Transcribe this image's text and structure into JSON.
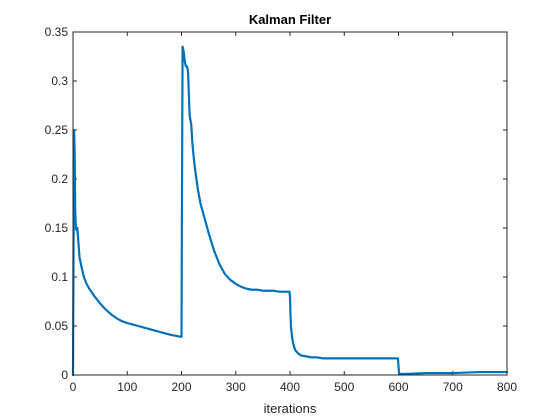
{
  "chart_data": {
    "type": "line",
    "title": "Kalman Filter",
    "xlabel": "iterations",
    "ylabel": "",
    "xlim": [
      0,
      800
    ],
    "ylim": [
      0,
      0.35
    ],
    "grid": false,
    "legend": "none",
    "xticks": [
      0,
      100,
      200,
      300,
      400,
      500,
      600,
      700,
      800
    ],
    "xtick_labels": [
      "0",
      "100",
      "200",
      "300",
      "400",
      "500",
      "600",
      "700",
      "800"
    ],
    "yticks": [
      0,
      0.05,
      0.1,
      0.15,
      0.2,
      0.25,
      0.3,
      0.35
    ],
    "ytick_labels": [
      "0",
      "0.05",
      "0.1",
      "0.15",
      "0.2",
      "0.25",
      "0.3",
      "0.35"
    ],
    "series": [
      {
        "color": "#0072bd",
        "x": [
          0,
          1,
          2,
          3,
          4,
          5,
          6,
          8,
          10,
          12,
          15,
          20,
          25,
          30,
          40,
          50,
          60,
          70,
          80,
          90,
          100,
          120,
          140,
          160,
          180,
          199,
          200,
          201,
          202,
          204,
          206,
          208,
          210,
          212,
          215,
          218,
          220,
          222,
          225,
          230,
          235,
          240,
          250,
          260,
          270,
          280,
          290,
          300,
          310,
          320,
          330,
          340,
          350,
          360,
          370,
          380,
          390,
          399,
          400,
          401,
          402,
          404,
          406,
          408,
          410,
          415,
          420,
          430,
          440,
          450,
          460,
          480,
          500,
          520,
          540,
          560,
          580,
          599,
          600,
          601,
          602,
          610,
          650,
          700,
          750,
          800
        ],
        "y": [
          0.0,
          0.13,
          0.25,
          0.23,
          0.17,
          0.155,
          0.148,
          0.15,
          0.135,
          0.12,
          0.112,
          0.1,
          0.093,
          0.088,
          0.08,
          0.073,
          0.067,
          0.062,
          0.058,
          0.055,
          0.053,
          0.05,
          0.047,
          0.044,
          0.041,
          0.039,
          0.039,
          0.2,
          0.335,
          0.33,
          0.32,
          0.315,
          0.315,
          0.31,
          0.265,
          0.255,
          0.237,
          0.225,
          0.21,
          0.19,
          0.175,
          0.165,
          0.145,
          0.127,
          0.113,
          0.103,
          0.097,
          0.093,
          0.09,
          0.088,
          0.087,
          0.087,
          0.086,
          0.086,
          0.086,
          0.085,
          0.085,
          0.085,
          0.08,
          0.06,
          0.048,
          0.038,
          0.032,
          0.028,
          0.025,
          0.022,
          0.02,
          0.019,
          0.018,
          0.018,
          0.017,
          0.017,
          0.017,
          0.017,
          0.017,
          0.017,
          0.017,
          0.017,
          0.009,
          0.002,
          0.001,
          0.001,
          0.002,
          0.002,
          0.003,
          0.003
        ]
      }
    ]
  }
}
